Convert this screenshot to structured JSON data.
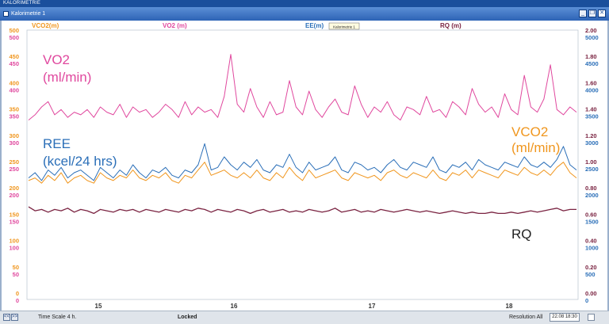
{
  "app": {
    "title": "KALORIMETRIE",
    "document_title": "Kalorimetrie 1"
  },
  "window_buttons": [
    "minimize-icon",
    "restore-icon",
    "close-icon"
  ],
  "chart": {
    "tooltip_label": "Kalorimetrie 1",
    "header_labels": [
      {
        "key": "vco2",
        "text": "VCO2(m)"
      },
      {
        "key": "vo2",
        "text": "VO2 (m)"
      },
      {
        "key": "ee",
        "text": "EE(m)"
      },
      {
        "key": "rq",
        "text": "RQ (m)"
      }
    ],
    "annotations": {
      "vo2_line1": "VO2",
      "vo2_line2": "(ml/min)",
      "ree_line1": "REE",
      "ree_line2": "(kcel/24 hrs)",
      "vco2_line1": "VCO2",
      "vco2_line2": "(ml/min)",
      "rq": "RQ"
    },
    "x_ticks": [
      "15",
      "16",
      "17",
      "18"
    ]
  },
  "status": {
    "time_scale": "Time Scale 4 h.",
    "locked": "Locked",
    "resolution": "Resolution All",
    "datetime": "22.08 18:30"
  },
  "colors": {
    "vco2": "#f0961e",
    "vo2": "#e0489e",
    "ee": "#2b6fb8",
    "rq": "#7a2341",
    "header_bg": "#2d63b5"
  },
  "chart_data": {
    "type": "line",
    "x": {
      "ticks": [
        "15",
        "16",
        "17",
        "18"
      ],
      "range_hours": [
        14.5,
        18.5
      ]
    },
    "axes": {
      "left_vco2": {
        "color": "orange",
        "range": [
          0,
          500
        ],
        "ticks": [
          "500",
          "450",
          "400",
          "350",
          "300",
          "250",
          "200",
          "150",
          "100",
          "50",
          "0"
        ]
      },
      "left_vo2": {
        "color": "magenta",
        "range": [
          0,
          500
        ],
        "ticks": [
          "500",
          "450",
          "400",
          "350",
          "300",
          "250",
          "200",
          "150",
          "100",
          "50",
          "0"
        ]
      },
      "right_rq": {
        "color": "dark-red",
        "range": [
          0,
          2.0
        ],
        "ticks": [
          "2.00",
          "1.80",
          "1.60",
          "1.40",
          "1.20",
          "1.00",
          "0.80",
          "0.60",
          "0.40",
          "0.20",
          "0.00"
        ]
      },
      "right_ee": {
        "color": "blue",
        "range": [
          0,
          5000
        ],
        "ticks": [
          "5000",
          "4500",
          "4000",
          "3500",
          "3000",
          "2500",
          "2000",
          "1500",
          "1000",
          "500",
          "0"
        ]
      }
    },
    "series": [
      {
        "name": "VO2 (m)",
        "axis": "left_vo2",
        "values": [
          335,
          345,
          360,
          370,
          345,
          355,
          340,
          350,
          345,
          355,
          340,
          360,
          350,
          345,
          365,
          340,
          360,
          350,
          355,
          340,
          350,
          365,
          355,
          340,
          370,
          345,
          360,
          350,
          355,
          340,
          380,
          460,
          365,
          350,
          395,
          360,
          340,
          370,
          345,
          350,
          410,
          360,
          345,
          390,
          355,
          340,
          360,
          375,
          350,
          345,
          400,
          365,
          340,
          360,
          350,
          370,
          345,
          335,
          360,
          355,
          345,
          380,
          350,
          355,
          340,
          370,
          360,
          345,
          395,
          365,
          350,
          360,
          340,
          385,
          355,
          345,
          420,
          360,
          350,
          375,
          440,
          355,
          345,
          360,
          350
        ]
      },
      {
        "name": "EE(m)",
        "axis": "left_vo2",
        "values": [
          225,
          235,
          220,
          240,
          230,
          245,
          225,
          235,
          240,
          230,
          220,
          245,
          235,
          225,
          240,
          230,
          250,
          235,
          225,
          240,
          235,
          245,
          230,
          225,
          240,
          235,
          250,
          290,
          240,
          245,
          265,
          250,
          240,
          255,
          245,
          260,
          240,
          235,
          250,
          245,
          270,
          245,
          235,
          255,
          240,
          245,
          250,
          265,
          240,
          235,
          255,
          250,
          240,
          245,
          235,
          250,
          260,
          245,
          240,
          255,
          250,
          245,
          265,
          240,
          235,
          250,
          245,
          255,
          240,
          260,
          250,
          245,
          240,
          255,
          250,
          245,
          265,
          250,
          245,
          255,
          245,
          260,
          285,
          250,
          240
        ]
      },
      {
        "name": "VCO2(m)",
        "axis": "left_vco2",
        "values": [
          220,
          225,
          215,
          230,
          220,
          235,
          215,
          225,
          230,
          220,
          215,
          235,
          225,
          220,
          230,
          225,
          240,
          225,
          220,
          230,
          225,
          235,
          220,
          215,
          230,
          225,
          240,
          255,
          230,
          235,
          240,
          230,
          225,
          235,
          225,
          240,
          225,
          220,
          235,
          225,
          245,
          230,
          220,
          240,
          225,
          230,
          235,
          240,
          225,
          220,
          235,
          230,
          225,
          230,
          220,
          235,
          240,
          230,
          225,
          235,
          230,
          225,
          240,
          225,
          220,
          235,
          230,
          240,
          225,
          240,
          235,
          230,
          225,
          240,
          235,
          230,
          245,
          235,
          230,
          240,
          230,
          245,
          255,
          235,
          225
        ]
      },
      {
        "name": "RQ (m)",
        "axis": "right_rq",
        "values": [
          0.68,
          0.65,
          0.66,
          0.64,
          0.66,
          0.65,
          0.67,
          0.64,
          0.66,
          0.65,
          0.63,
          0.66,
          0.65,
          0.64,
          0.66,
          0.65,
          0.66,
          0.64,
          0.66,
          0.65,
          0.64,
          0.66,
          0.65,
          0.64,
          0.66,
          0.65,
          0.67,
          0.66,
          0.64,
          0.66,
          0.65,
          0.64,
          0.66,
          0.65,
          0.63,
          0.65,
          0.66,
          0.64,
          0.65,
          0.66,
          0.64,
          0.65,
          0.64,
          0.66,
          0.65,
          0.64,
          0.65,
          0.67,
          0.64,
          0.65,
          0.66,
          0.64,
          0.65,
          0.64,
          0.66,
          0.65,
          0.64,
          0.65,
          0.66,
          0.65,
          0.64,
          0.65,
          0.64,
          0.63,
          0.64,
          0.65,
          0.64,
          0.63,
          0.64,
          0.63,
          0.63,
          0.64,
          0.63,
          0.63,
          0.64,
          0.63,
          0.64,
          0.65,
          0.64,
          0.65,
          0.66,
          0.67,
          0.65,
          0.66,
          0.66
        ]
      }
    ]
  }
}
